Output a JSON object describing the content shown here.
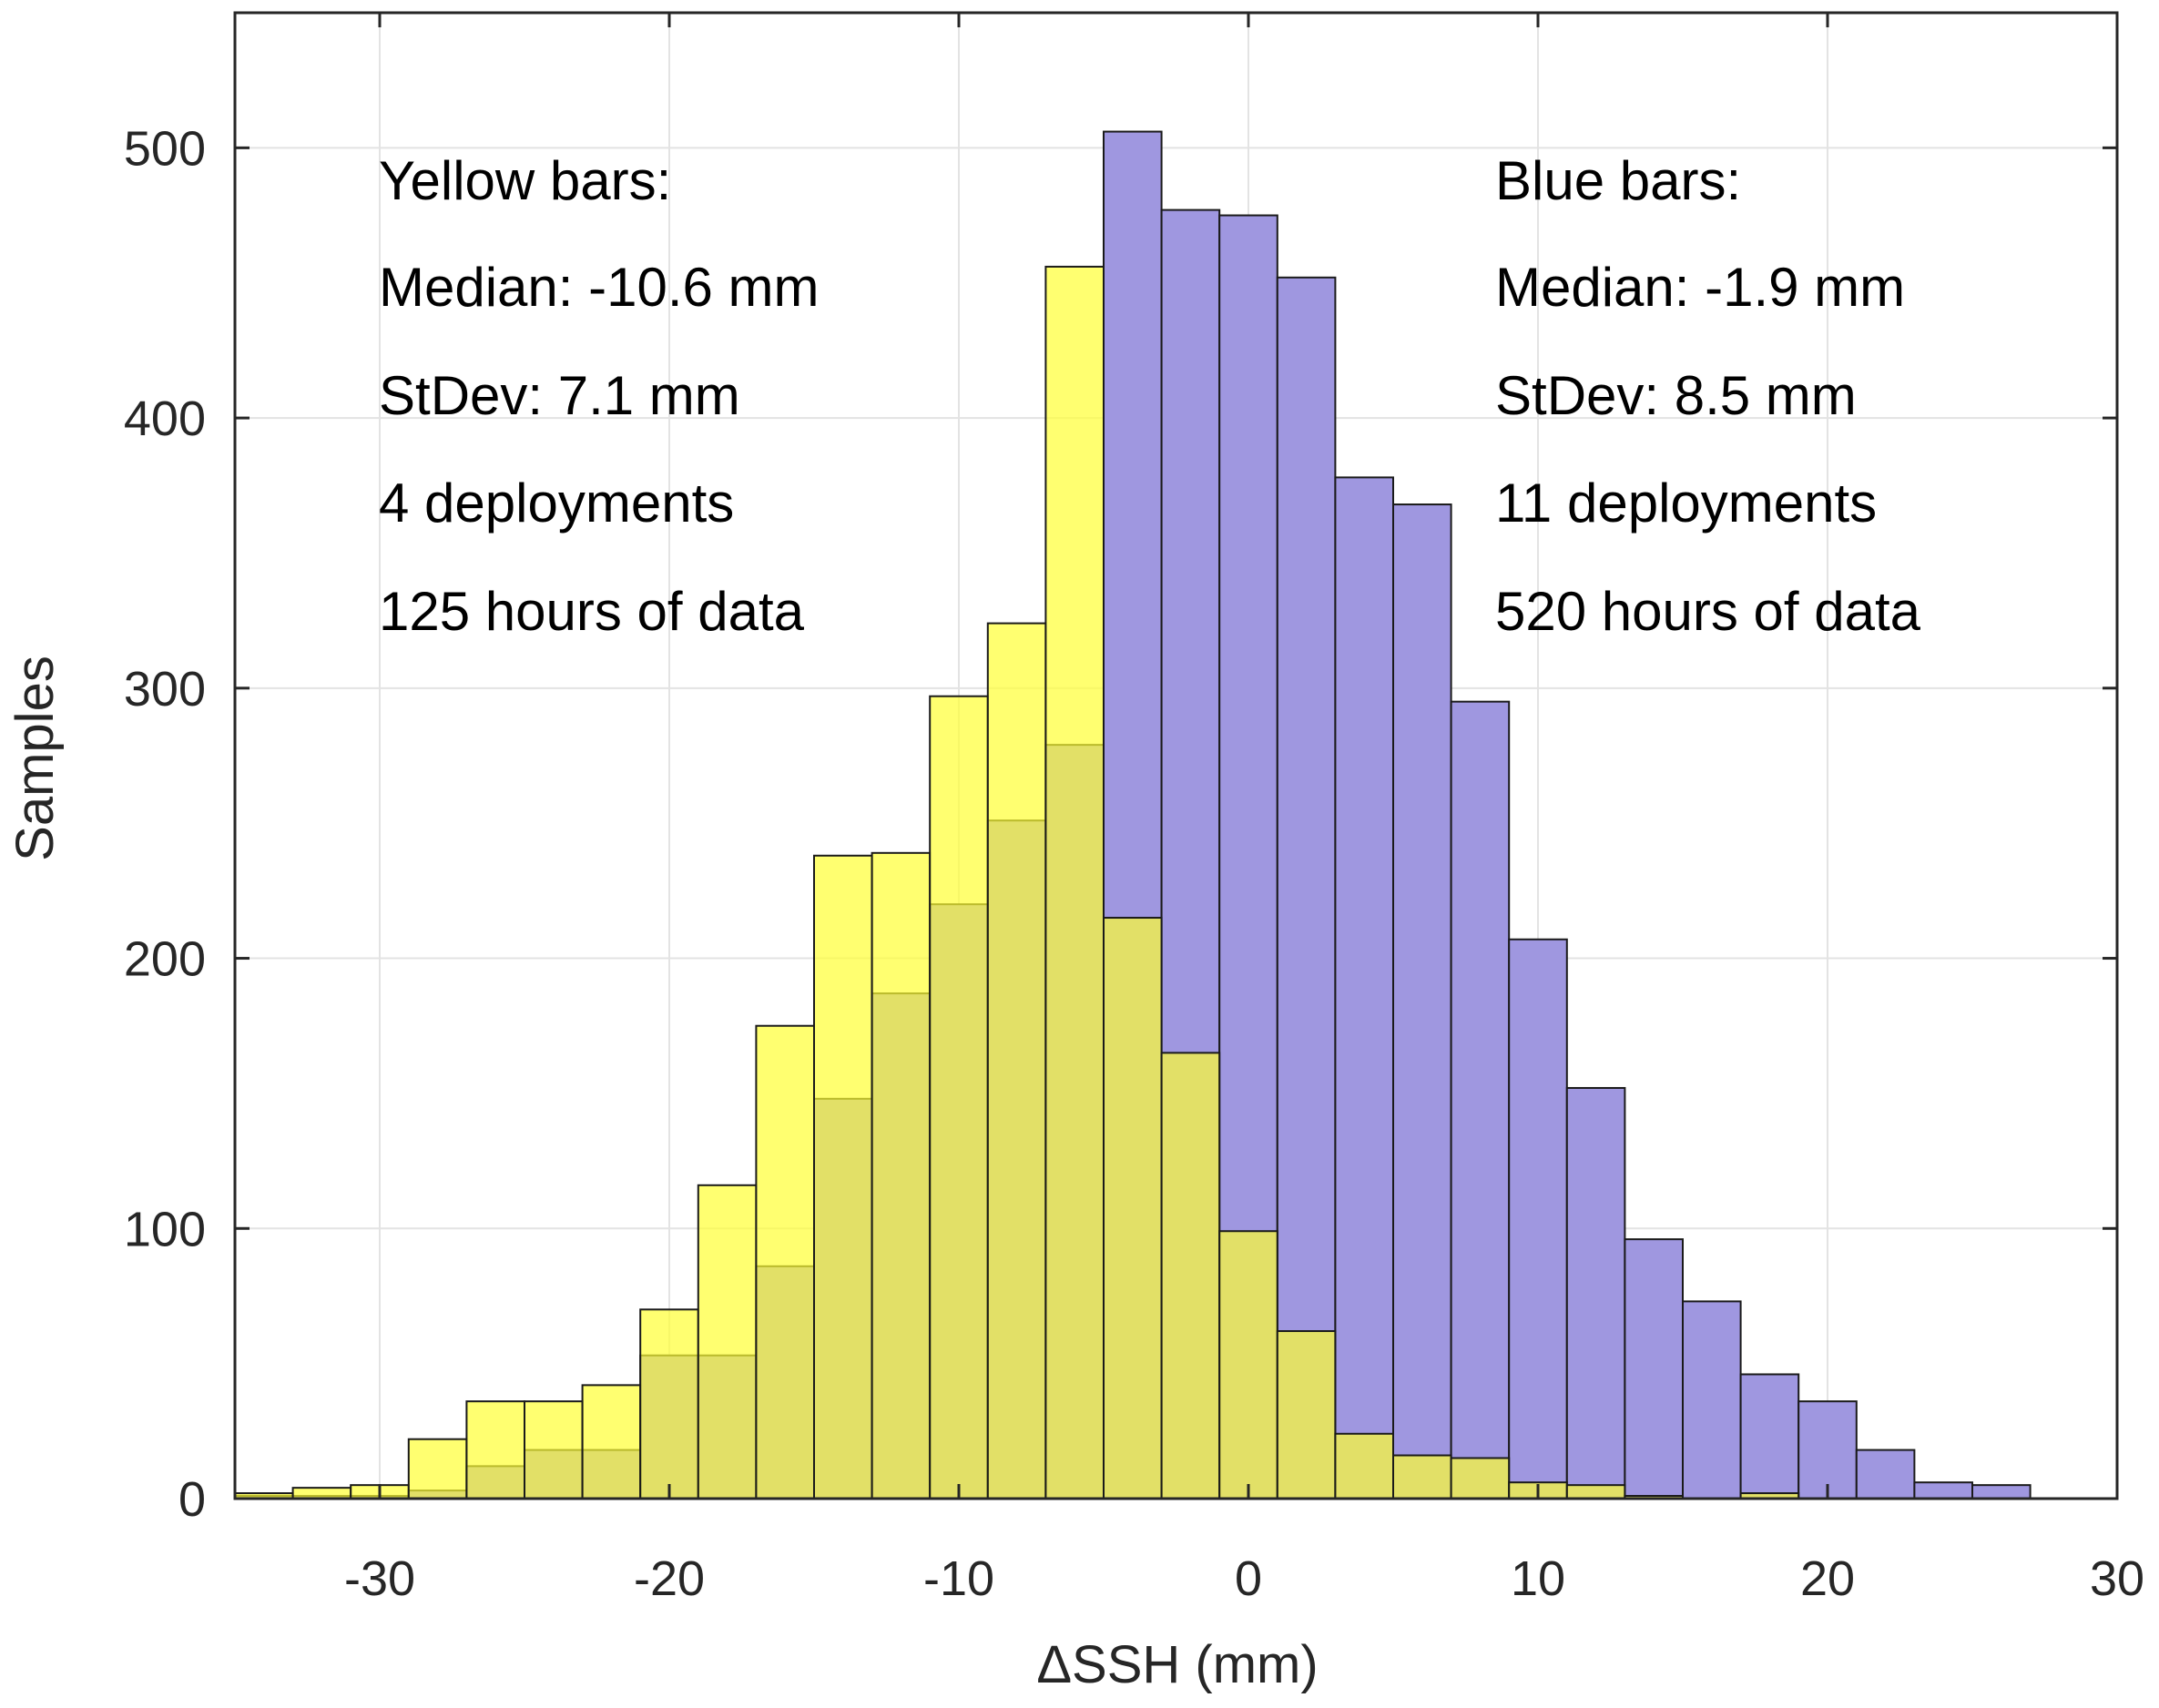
{
  "chart_data": {
    "type": "bar",
    "title": "",
    "xlabel": "ΔSSH (mm)",
    "ylabel": "Samples",
    "xlim": [
      -35,
      30
    ],
    "ylim": [
      0,
      550
    ],
    "bin_width": 2,
    "grid": true,
    "xticks": [
      -30,
      -20,
      -10,
      0,
      10,
      20,
      30
    ],
    "xtick_labels": [
      "-30",
      "-20",
      "-10",
      "0",
      "10",
      "20",
      "30"
    ],
    "yticks": [
      0,
      100,
      200,
      300,
      400,
      500
    ],
    "ytick_labels": [
      "0",
      "100",
      "200",
      "300",
      "400",
      "500"
    ],
    "series": [
      {
        "name": "Blue bars",
        "color": "#9f97e0",
        "bin_edges_start": [
          -35,
          -33,
          -31,
          -29,
          -27,
          -25,
          -23,
          -21,
          -19,
          -17,
          -15,
          -13,
          -11,
          -9,
          -7,
          -5,
          -3,
          -1,
          1,
          3,
          5,
          7,
          9,
          11,
          13,
          15,
          17,
          19,
          21,
          23,
          25
        ],
        "values": [
          1,
          1,
          1,
          3,
          12,
          18,
          18,
          53,
          53,
          86,
          148,
          187,
          220,
          251,
          279,
          506,
          477,
          475,
          452,
          378,
          368,
          295,
          207,
          152,
          96,
          73,
          46,
          36,
          18,
          6,
          5
        ]
      },
      {
        "name": "Yellow bars",
        "color": "#ffff33",
        "bin_edges_start": [
          -35,
          -33,
          -31,
          -29,
          -27,
          -25,
          -23,
          -21,
          -19,
          -17,
          -15,
          -13,
          -11,
          -9,
          -7,
          -5,
          -3,
          -1,
          1,
          3,
          5,
          7,
          9,
          11,
          13,
          15,
          17,
          19
        ],
        "values": [
          2,
          4,
          5,
          22,
          36,
          36,
          42,
          70,
          116,
          175,
          238,
          239,
          297,
          324,
          456,
          215,
          165,
          99,
          62,
          24,
          16,
          15,
          6,
          5,
          1,
          0,
          2,
          0
        ]
      }
    ],
    "annotations": {
      "yellow": [
        "Yellow bars:",
        "Median: -10.6 mm",
        "StDev: 7.1 mm",
        "4 deployments",
        "125 hours of data"
      ],
      "blue": [
        "Blue bars:",
        "Median: -1.9 mm",
        "StDev: 8.5 mm",
        "11 deployments",
        "520 hours of data"
      ]
    }
  }
}
